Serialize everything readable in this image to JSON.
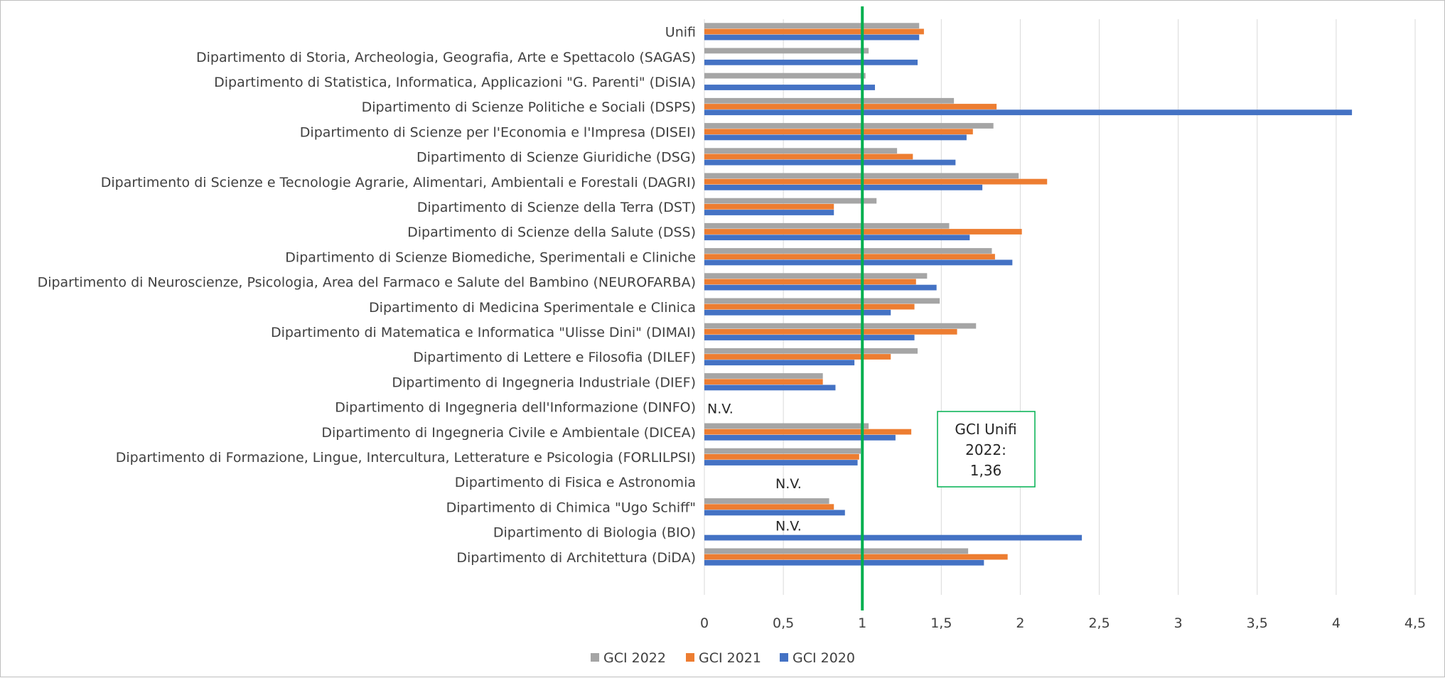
{
  "chart_data": {
    "type": "bar",
    "orientation": "horizontal",
    "categories": [
      "Unifi",
      "Dipartimento di Storia, Archeologia, Geografia, Arte e Spettacolo (SAGAS)",
      "Dipartimento di Statistica, Informatica, Applicazioni \"G. Parenti\" (DiSIA)",
      "Dipartimento di Scienze Politiche e Sociali (DSPS)",
      "Dipartimento di Scienze per l'Economia e l'Impresa (DISEI)",
      "Dipartimento di Scienze Giuridiche (DSG)",
      "Dipartimento di Scienze e Tecnologie Agrarie, Alimentari, Ambientali e Forestali (DAGRI)",
      "Dipartimento di Scienze della Terra (DST)",
      "Dipartimento di Scienze della Salute (DSS)",
      "Dipartimento di Scienze Biomediche, Sperimentali e Cliniche",
      "Dipartimento di Neuroscienze, Psicologia, Area del Farmaco e Salute del Bambino (NEUROFARBA)",
      "Dipartimento di Medicina Sperimentale e Clinica",
      "Dipartimento di Matematica e Informatica \"Ulisse Dini\" (DIMAI)",
      "Dipartimento di Lettere e Filosofia (DILEF)",
      "Dipartimento di Ingegneria Industriale (DIEF)",
      "Dipartimento di Ingegneria dell'Informazione (DINFO)",
      "Dipartimento di Ingegneria Civile e Ambientale (DICEA)",
      "Dipartimento di Formazione, Lingue, Intercultura, Letterature e Psicologia (FORLILPSI)",
      "Dipartimento di Fisica e Astronomia",
      "Dipartimento di Chimica \"Ugo Schiff\"",
      "Dipartimento di Biologia (BIO)",
      "Dipartimento di Architettura (DiDA)"
    ],
    "series": [
      {
        "name": "GCI 2022",
        "color": "#a5a5a5",
        "values": [
          1.36,
          1.04,
          1.02,
          1.58,
          1.83,
          1.22,
          1.99,
          1.09,
          1.55,
          1.82,
          1.41,
          1.49,
          1.72,
          1.35,
          0.75,
          null,
          1.04,
          0.99,
          null,
          0.79,
          null,
          1.67
        ]
      },
      {
        "name": "GCI 2021",
        "color": "#ed7d31",
        "values": [
          1.39,
          null,
          null,
          1.85,
          1.7,
          1.32,
          2.17,
          0.82,
          2.01,
          1.84,
          1.34,
          1.33,
          1.6,
          1.18,
          0.75,
          null,
          1.31,
          0.98,
          null,
          0.82,
          null,
          1.92
        ]
      },
      {
        "name": "GCI 2020",
        "color": "#4472c4",
        "values": [
          1.36,
          1.35,
          1.08,
          4.1,
          1.66,
          1.59,
          1.76,
          0.82,
          1.68,
          1.95,
          1.47,
          1.18,
          1.33,
          0.95,
          0.83,
          null,
          1.21,
          0.97,
          null,
          0.89,
          2.39,
          1.77
        ]
      }
    ],
    "nv_marks": [
      {
        "category_index": 15,
        "text": "N.V."
      },
      {
        "category_index": 18,
        "text": "N.V."
      },
      {
        "category_index": 20,
        "text": "N.V."
      }
    ],
    "xlim": [
      0,
      4.5
    ],
    "x_ticks": [
      0,
      0.5,
      1,
      1.5,
      2,
      2.5,
      3,
      3.5,
      4,
      4.5
    ],
    "x_tick_labels": [
      "0",
      "0,5",
      "1",
      "1,5",
      "2",
      "2,5",
      "3",
      "3,5",
      "4",
      "4,5"
    ],
    "reference_line": {
      "value": 1,
      "color": "#00b050"
    },
    "annotation": {
      "lines": [
        "GCI Unifi",
        "2022:",
        "1,36"
      ],
      "border_color": "#00b050"
    },
    "grid": "vertical",
    "legend_position": "bottom"
  }
}
